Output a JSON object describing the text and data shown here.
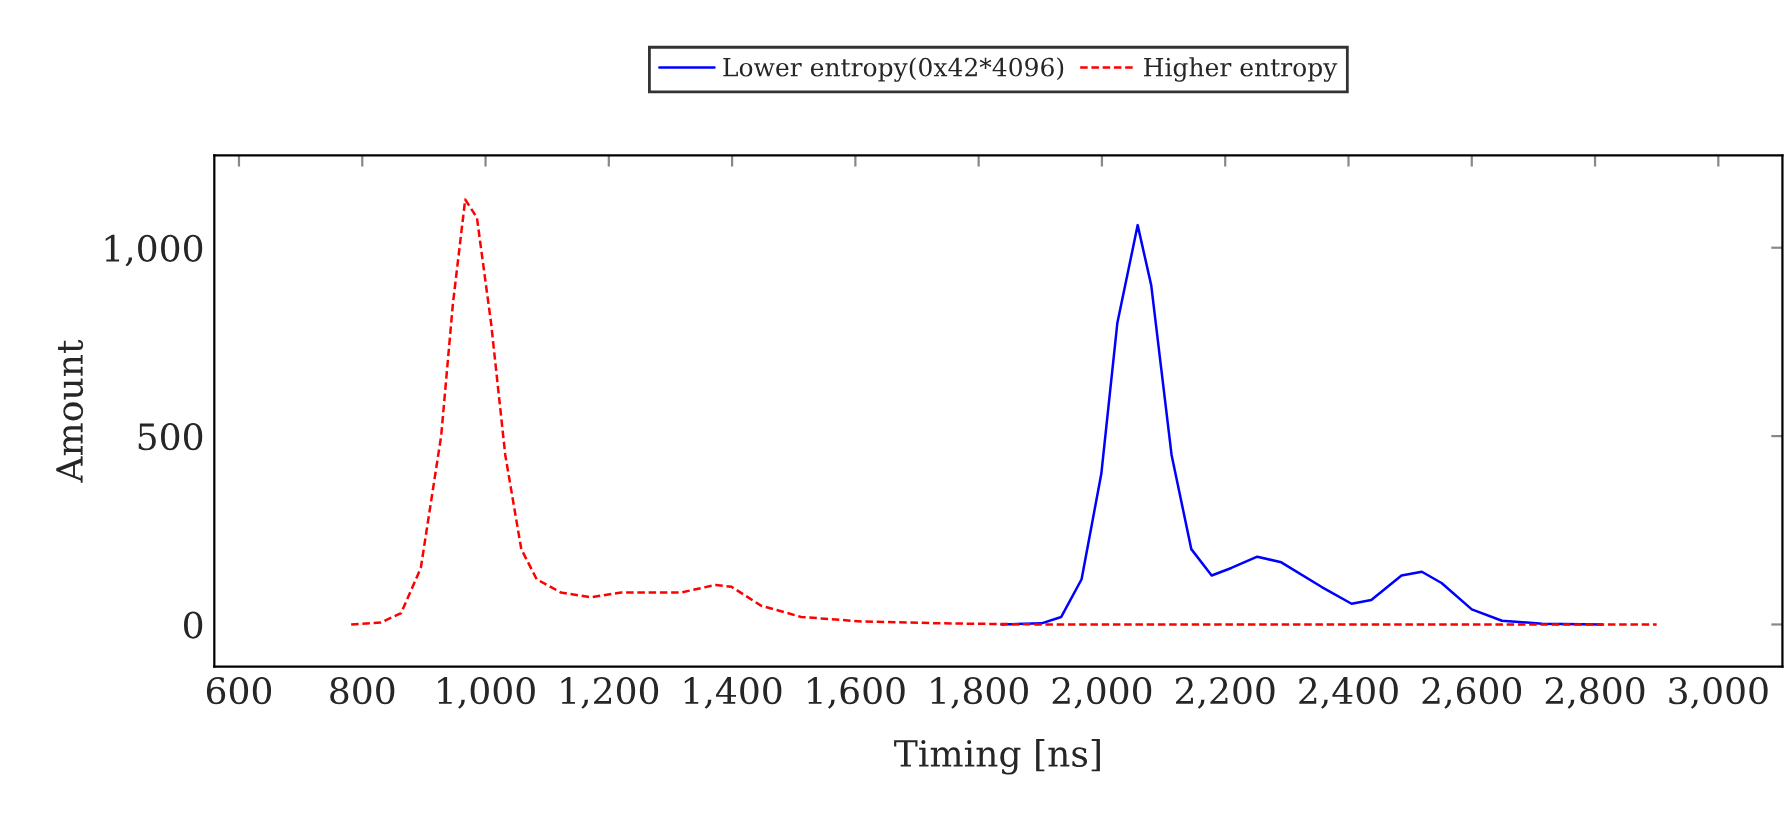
{
  "chart_data": {
    "type": "line",
    "xlabel": "Timing [ns]",
    "ylabel": "Amount",
    "legend": "top",
    "grid": false,
    "marker": "none",
    "xlim": [
      560,
      3104
    ],
    "ylim": [
      -112,
      1245
    ],
    "xticks": [
      600,
      800,
      {
        "value": 1000,
        "label": "1,000"
      },
      {
        "value": 1200,
        "label": "1,200"
      },
      {
        "value": 1400,
        "label": "1,400"
      },
      {
        "value": 1600,
        "label": "1,600"
      },
      {
        "value": 1800,
        "label": "1,800"
      },
      {
        "value": 2000,
        "label": "2,000"
      },
      {
        "value": 2200,
        "label": "2,200"
      },
      {
        "value": 2400,
        "label": "2,400"
      },
      {
        "value": 2600,
        "label": "2,600"
      },
      {
        "value": 2800,
        "label": "2,800"
      },
      {
        "value": 3000,
        "label": "3,000"
      }
    ],
    "yticks": [
      0,
      500,
      {
        "value": 1000,
        "label": "1,000"
      }
    ],
    "series": [
      {
        "name": "Lower entropy(0x42*4096)",
        "color": "#0000ff",
        "line_style": "solid",
        "x": [
          1837,
          1902,
          1934,
          1967,
          1999,
          2025,
          2058,
          2080,
          2113,
          2145,
          2178,
          2210,
          2252,
          2291,
          2356,
          2405,
          2437,
          2486,
          2519,
          2551,
          2600,
          2649,
          2714,
          2811
        ],
        "values": [
          0,
          3,
          20,
          120,
          400,
          800,
          1060,
          900,
          450,
          200,
          130,
          150,
          180,
          165,
          100,
          55,
          65,
          130,
          140,
          110,
          40,
          10,
          2,
          0
        ]
      },
      {
        "name": "Higher entropy",
        "color": "#ff0000",
        "line_style": "dashed",
        "x": [
          782,
          830,
          863,
          895,
          928,
          947,
          967,
          986,
          1009,
          1032,
          1058,
          1083,
          1122,
          1171,
          1220,
          1269,
          1318,
          1373,
          1399,
          1447,
          1512,
          1610,
          1740,
          1902,
          2162,
          2900
        ],
        "values": [
          0,
          5,
          30,
          150,
          500,
          850,
          1128,
          1080,
          800,
          450,
          200,
          120,
          85,
          72,
          85,
          85,
          85,
          105,
          100,
          50,
          20,
          8,
          3,
          0,
          0,
          0
        ]
      }
    ]
  }
}
